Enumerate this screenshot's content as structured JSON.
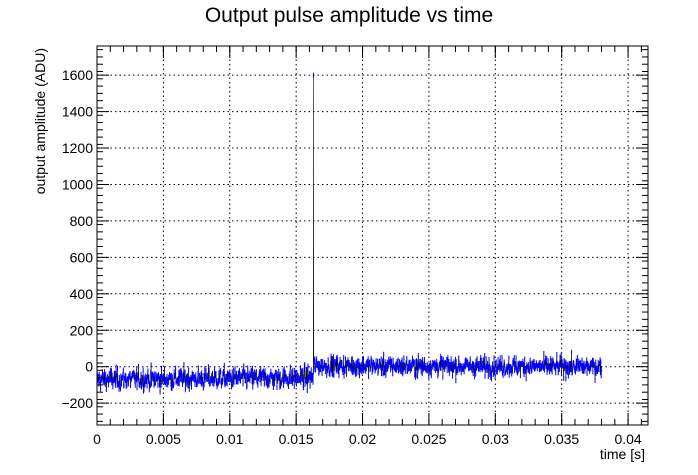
{
  "chart_data": {
    "type": "scatter",
    "title": "Output pulse amplitude vs time",
    "xlabel": "time [s]",
    "ylabel": "output amplitude (ADU)",
    "xlim": [
      0,
      0.0415
    ],
    "ylim": [
      -320,
      1760
    ],
    "x_ticks": [
      0,
      0.005,
      0.01,
      0.015,
      0.02,
      0.025,
      0.03,
      0.035,
      0.04
    ],
    "x_tick_labels": [
      "0",
      "0.005",
      "0.01",
      "0.015",
      "0.02",
      "0.025",
      "0.03",
      "0.035",
      "0.04"
    ],
    "y_ticks": [
      -200,
      0,
      200,
      400,
      600,
      800,
      1000,
      1200,
      1400,
      1600
    ],
    "y_tick_labels": [
      "−200",
      "0",
      "200",
      "400",
      "600",
      "800",
      "1000",
      "1200",
      "1400",
      "1600"
    ],
    "grid": true,
    "series": [
      {
        "marker_color": "#0000ff",
        "line_color": "#000000",
        "segments": [
          {
            "x_start": 0.0,
            "x_end": 0.0163,
            "mean_start": -70,
            "mean_end": -60,
            "noise_sd": 28
          },
          {
            "x_start": 0.0163,
            "x_end": 0.038,
            "mean_start": 5,
            "mean_end": 0,
            "noise_sd": 25
          }
        ],
        "spike": {
          "x": 0.0163,
          "y": 1600
        },
        "n_points": 1400
      }
    ]
  }
}
